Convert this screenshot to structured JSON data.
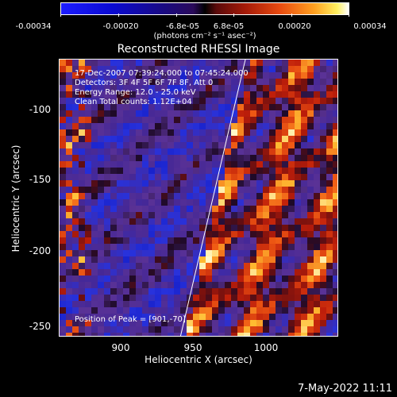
{
  "colorbar": {
    "ticks": [
      "-0.00034",
      "-0.00020",
      "-6.8e-05",
      "6.8e-05",
      "0.00020",
      "0.00034"
    ],
    "unit_label": "(photons cm⁻² s⁻¹ asec⁻²)"
  },
  "title": "Reconstructed RHESSI Image",
  "info": {
    "line1": "17-Dec-2007 07:39:24.000 to 07:45:24.000",
    "line2": "Detectors: 3F 4F 5F 6F 7F 8F, Att 0",
    "line3": "Energy Range: 12.0 - 25.0 keV",
    "line4": "Clean     Total counts: 1.12E+04",
    "peak": "Position of Peak = [901,-70]"
  },
  "axes": {
    "xlabel": "Heliocentric X (arcsec)",
    "ylabel": "Heliocentric Y (arcsec)",
    "xticks": [
      "900",
      "950",
      "1000"
    ],
    "yticks": [
      "-100",
      "-150",
      "-200",
      "-250"
    ]
  },
  "footer": "7-May-2022 11:11"
}
